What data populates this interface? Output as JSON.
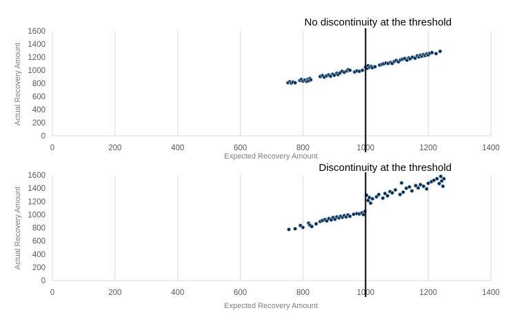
{
  "chart_data": [
    {
      "type": "scatter",
      "title": "No discontinuity at the threshold",
      "xlabel": "Expected Recovery Amount",
      "ylabel": "Actual Recovery Amount",
      "xlim": [
        0,
        1400
      ],
      "ylim": [
        0,
        1600
      ],
      "xticks": [
        "0",
        "200",
        "400",
        "600",
        "800",
        "1000",
        "1200",
        "1400"
      ],
      "yticks": [
        "0",
        "200",
        "400",
        "600",
        "800",
        "1000",
        "1200",
        "1400",
        "1600"
      ],
      "threshold": 1000,
      "grid": "vertical",
      "legend": "none",
      "marker_color": "#0d2a45",
      "marker_edge": "#9dc3e6",
      "points": [
        [
          752,
          810
        ],
        [
          758,
          825
        ],
        [
          763,
          805
        ],
        [
          768,
          820
        ],
        [
          775,
          810
        ],
        [
          790,
          845
        ],
        [
          795,
          860
        ],
        [
          800,
          835
        ],
        [
          806,
          850
        ],
        [
          812,
          830
        ],
        [
          816,
          865
        ],
        [
          818,
          840
        ],
        [
          822,
          875
        ],
        [
          825,
          855
        ],
        [
          855,
          905
        ],
        [
          862,
          920
        ],
        [
          868,
          895
        ],
        [
          875,
          915
        ],
        [
          882,
          930
        ],
        [
          888,
          910
        ],
        [
          895,
          940
        ],
        [
          900,
          925
        ],
        [
          908,
          955
        ],
        [
          912,
          935
        ],
        [
          918,
          960
        ],
        [
          925,
          985
        ],
        [
          932,
          970
        ],
        [
          940,
          990
        ],
        [
          945,
          1010
        ],
        [
          950,
          1000
        ],
        [
          965,
          975
        ],
        [
          972,
          990
        ],
        [
          980,
          985
        ],
        [
          990,
          1000
        ],
        [
          1000,
          1050
        ],
        [
          1005,
          1030
        ],
        [
          1008,
          1070
        ],
        [
          1013,
          1045
        ],
        [
          1018,
          1060
        ],
        [
          1022,
          1040
        ],
        [
          1030,
          1055
        ],
        [
          1045,
          1080
        ],
        [
          1052,
          1090
        ],
        [
          1058,
          1100
        ],
        [
          1065,
          1110
        ],
        [
          1072,
          1105
        ],
        [
          1080,
          1120
        ],
        [
          1085,
          1105
        ],
        [
          1092,
          1135
        ],
        [
          1098,
          1150
        ],
        [
          1105,
          1130
        ],
        [
          1112,
          1160
        ],
        [
          1118,
          1170
        ],
        [
          1125,
          1180
        ],
        [
          1132,
          1155
        ],
        [
          1138,
          1190
        ],
        [
          1142,
          1175
        ],
        [
          1150,
          1200
        ],
        [
          1158,
          1185
        ],
        [
          1165,
          1220
        ],
        [
          1170,
          1205
        ],
        [
          1175,
          1230
        ],
        [
          1180,
          1215
        ],
        [
          1185,
          1240
        ],
        [
          1190,
          1225
        ],
        [
          1195,
          1250
        ],
        [
          1200,
          1235
        ],
        [
          1205,
          1260
        ],
        [
          1212,
          1270
        ],
        [
          1225,
          1255
        ],
        [
          1238,
          1290
        ]
      ]
    },
    {
      "type": "scatter",
      "title": "Discontinuity at the threshold",
      "xlabel": "Expected Recovery Amount",
      "ylabel": "Actual Recovery Amount",
      "xlim": [
        0,
        1400
      ],
      "ylim": [
        0,
        1600
      ],
      "xticks": [
        "0",
        "200",
        "400",
        "600",
        "800",
        "1000",
        "1200",
        "1400"
      ],
      "yticks": [
        "0",
        "200",
        "400",
        "600",
        "800",
        "1000",
        "1200",
        "1400",
        "1600"
      ],
      "threshold": 1000,
      "grid": "vertical",
      "legend": "none",
      "marker_color": "#0d2a45",
      "marker_edge": "#9dc3e6",
      "points": [
        [
          755,
          775
        ],
        [
          775,
          785
        ],
        [
          792,
          835
        ],
        [
          800,
          805
        ],
        [
          818,
          870
        ],
        [
          822,
          840
        ],
        [
          828,
          820
        ],
        [
          842,
          860
        ],
        [
          855,
          895
        ],
        [
          862,
          910
        ],
        [
          870,
          925
        ],
        [
          876,
          905
        ],
        [
          883,
          940
        ],
        [
          890,
          920
        ],
        [
          896,
          955
        ],
        [
          902,
          930
        ],
        [
          908,
          965
        ],
        [
          915,
          950
        ],
        [
          920,
          975
        ],
        [
          926,
          960
        ],
        [
          932,
          985
        ],
        [
          938,
          965
        ],
        [
          944,
          995
        ],
        [
          950,
          975
        ],
        [
          962,
          1005
        ],
        [
          972,
          1015
        ],
        [
          980,
          1010
        ],
        [
          988,
          1025
        ],
        [
          993,
          1000
        ],
        [
          998,
          1050
        ],
        [
          1003,
          1295
        ],
        [
          1008,
          1215
        ],
        [
          1012,
          1260
        ],
        [
          1016,
          1175
        ],
        [
          1022,
          1240
        ],
        [
          1035,
          1270
        ],
        [
          1042,
          1305
        ],
        [
          1055,
          1250
        ],
        [
          1062,
          1320
        ],
        [
          1070,
          1285
        ],
        [
          1078,
          1350
        ],
        [
          1085,
          1330
        ],
        [
          1095,
          1375
        ],
        [
          1110,
          1305
        ],
        [
          1115,
          1480
        ],
        [
          1120,
          1340
        ],
        [
          1130,
          1400
        ],
        [
          1140,
          1420
        ],
        [
          1148,
          1360
        ],
        [
          1160,
          1440
        ],
        [
          1168,
          1405
        ],
        [
          1175,
          1455
        ],
        [
          1185,
          1430
        ],
        [
          1195,
          1390
        ],
        [
          1200,
          1475
        ],
        [
          1210,
          1500
        ],
        [
          1218,
          1520
        ],
        [
          1228,
          1545
        ],
        [
          1235,
          1470
        ],
        [
          1240,
          1580
        ],
        [
          1243,
          1510
        ],
        [
          1247,
          1430
        ],
        [
          1250,
          1545
        ]
      ]
    }
  ]
}
